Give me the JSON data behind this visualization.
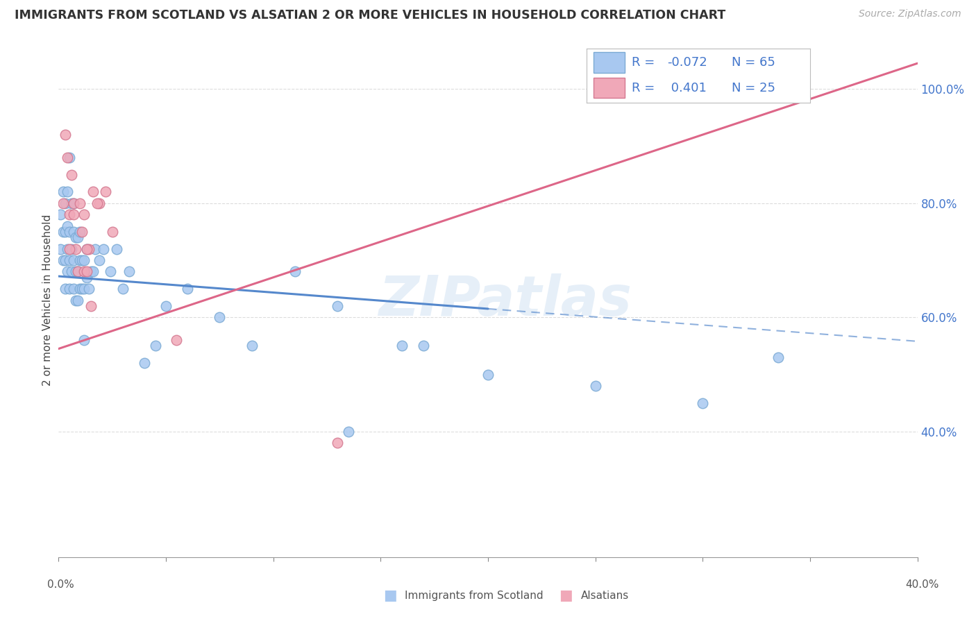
{
  "title": "IMMIGRANTS FROM SCOTLAND VS ALSATIAN 2 OR MORE VEHICLES IN HOUSEHOLD CORRELATION CHART",
  "source": "Source: ZipAtlas.com",
  "ylabel": "2 or more Vehicles in Household",
  "xlim": [
    0.0,
    0.4
  ],
  "ylim": [
    0.18,
    1.08
  ],
  "ytick_vals": [
    0.4,
    0.6,
    0.8,
    1.0
  ],
  "ytick_labels": [
    "40.0%",
    "60.0%",
    "80.0%",
    "100.0%"
  ],
  "xtick_vals": [
    0.0,
    0.05,
    0.1,
    0.15,
    0.2,
    0.25,
    0.3,
    0.35,
    0.4
  ],
  "scotland_color": "#a8c8f0",
  "scotland_edge": "#7baad4",
  "alsatian_color": "#f0a8b8",
  "alsatian_edge": "#d47890",
  "trendline_scotland": "#5588cc",
  "trendline_alsatian": "#dd6688",
  "legend_color": "#4477cc",
  "watermark": "ZIPatlas",
  "sc_trendline_x0": 0.0,
  "sc_trendline_y0": 0.672,
  "sc_trendline_x1": 0.2,
  "sc_trendline_y1": 0.615,
  "sc_trendline_xdash0": 0.2,
  "sc_trendline_ydash0": 0.615,
  "sc_trendline_xdash1": 0.4,
  "sc_trendline_ydash1": 0.558,
  "al_trendline_x0": 0.0,
  "al_trendline_y0": 0.545,
  "al_trendline_x1": 0.4,
  "al_trendline_y1": 1.045,
  "scotland_x": [
    0.001,
    0.001,
    0.002,
    0.002,
    0.002,
    0.003,
    0.003,
    0.003,
    0.003,
    0.004,
    0.004,
    0.004,
    0.004,
    0.005,
    0.005,
    0.005,
    0.005,
    0.006,
    0.006,
    0.006,
    0.007,
    0.007,
    0.007,
    0.007,
    0.008,
    0.008,
    0.008,
    0.009,
    0.009,
    0.009,
    0.01,
    0.01,
    0.01,
    0.011,
    0.011,
    0.012,
    0.012,
    0.013,
    0.013,
    0.014,
    0.015,
    0.016,
    0.017,
    0.019,
    0.021,
    0.024,
    0.027,
    0.03,
    0.033,
    0.04,
    0.05,
    0.06,
    0.075,
    0.09,
    0.11,
    0.13,
    0.16,
    0.2,
    0.25,
    0.3,
    0.335,
    0.17,
    0.045,
    0.135,
    0.012
  ],
  "scotland_y": [
    0.72,
    0.78,
    0.7,
    0.75,
    0.82,
    0.65,
    0.7,
    0.75,
    0.8,
    0.68,
    0.72,
    0.76,
    0.82,
    0.65,
    0.7,
    0.75,
    0.88,
    0.68,
    0.72,
    0.8,
    0.65,
    0.7,
    0.75,
    0.8,
    0.63,
    0.68,
    0.74,
    0.63,
    0.68,
    0.74,
    0.65,
    0.7,
    0.75,
    0.65,
    0.7,
    0.65,
    0.7,
    0.67,
    0.72,
    0.65,
    0.68,
    0.68,
    0.72,
    0.7,
    0.72,
    0.68,
    0.72,
    0.65,
    0.68,
    0.52,
    0.62,
    0.65,
    0.6,
    0.55,
    0.68,
    0.62,
    0.55,
    0.5,
    0.48,
    0.45,
    0.53,
    0.55,
    0.55,
    0.4,
    0.56
  ],
  "alsatian_x": [
    0.002,
    0.003,
    0.004,
    0.005,
    0.006,
    0.007,
    0.008,
    0.009,
    0.01,
    0.011,
    0.012,
    0.014,
    0.016,
    0.019,
    0.022,
    0.012,
    0.013,
    0.015,
    0.018,
    0.025,
    0.055,
    0.13,
    0.013,
    0.005,
    0.007
  ],
  "alsatian_y": [
    0.8,
    0.92,
    0.88,
    0.78,
    0.85,
    0.8,
    0.72,
    0.68,
    0.8,
    0.75,
    0.68,
    0.72,
    0.82,
    0.8,
    0.82,
    0.78,
    0.72,
    0.62,
    0.8,
    0.75,
    0.56,
    0.38,
    0.68,
    0.72,
    0.78
  ]
}
